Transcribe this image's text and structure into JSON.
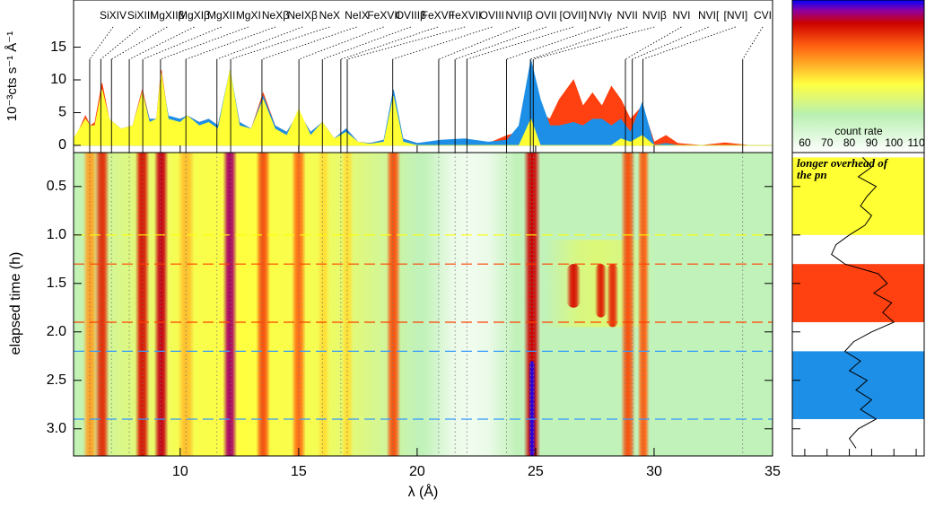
{
  "chart_data": [
    {
      "type": "area",
      "ylabel": "10⁻³cts s⁻¹ Å⁻¹",
      "xlim": [
        5.5,
        35
      ],
      "ylim": [
        -1.1,
        22.2
      ],
      "xticks": [
        10,
        15,
        20,
        25,
        30,
        35
      ],
      "yticks": [
        0,
        5,
        10,
        15
      ],
      "x": [
        5.5,
        6.0,
        6.2,
        6.4,
        6.7,
        7.0,
        7.5,
        8.0,
        8.4,
        8.7,
        9.0,
        9.2,
        9.5,
        10.0,
        10.3,
        10.8,
        11.2,
        11.6,
        12.1,
        12.5,
        13.0,
        13.5,
        14.0,
        14.5,
        15.0,
        15.5,
        16.0,
        16.5,
        17.0,
        17.5,
        18.0,
        18.6,
        19.0,
        19.4,
        20.0,
        21.0,
        22.0,
        23.0,
        23.8,
        24.3,
        24.8,
        25.2,
        25.6,
        26.0,
        26.6,
        27.0,
        27.4,
        27.8,
        28.2,
        28.6,
        29.0,
        29.5,
        30.0,
        30.5,
        31.0,
        32.0,
        33.0,
        34.0,
        35.0
      ],
      "series": [
        {
          "color": "#ff4010",
          "values": [
            0.5,
            4.5,
            3,
            3.5,
            9.5,
            4,
            2.5,
            3,
            8.5,
            4,
            4,
            11.5,
            4,
            4,
            4.5,
            3.5,
            4,
            3,
            11,
            3.5,
            2.5,
            8,
            3,
            2,
            5,
            2,
            3.5,
            1,
            2.5,
            0.5,
            0.3,
            0.8,
            7,
            1,
            0.3,
            0.5,
            0.5,
            0.3,
            1.5,
            2,
            12,
            5,
            4,
            7,
            10,
            6,
            8,
            6,
            9,
            7,
            4,
            6,
            0.5,
            1.5,
            0.3,
            0,
            0.4,
            0,
            0
          ]
        },
        {
          "color": "#1e8fe6",
          "values": [
            0.5,
            4,
            3,
            3,
            8,
            4,
            2.5,
            3,
            8,
            4,
            4,
            10.5,
            4.5,
            4,
            4.5,
            3.5,
            4,
            3,
            11.5,
            3.5,
            2.5,
            7.5,
            3,
            2,
            5,
            2,
            3.5,
            1,
            2.5,
            0.5,
            0.3,
            0.8,
            8.5,
            1,
            0.3,
            0.8,
            1,
            0.5,
            0.8,
            3,
            13,
            7,
            3,
            3,
            3.5,
            3,
            4,
            4,
            3,
            4,
            2,
            6.5,
            0,
            0.3,
            0,
            0,
            0,
            0,
            0
          ]
        },
        {
          "color": "#ffff33",
          "values": [
            1,
            4,
            3,
            3,
            8.5,
            4,
            2.5,
            3,
            8,
            3.5,
            4,
            11,
            4,
            3.5,
            4.5,
            3,
            3.5,
            2.5,
            11.5,
            3,
            2.5,
            7,
            2.5,
            1.5,
            5.5,
            1.5,
            3.5,
            1,
            2,
            0.5,
            0.2,
            0.5,
            7.5,
            0.5,
            0,
            0,
            0,
            0,
            0,
            0,
            4,
            0,
            0,
            0,
            0,
            0,
            0,
            0,
            0,
            1,
            0.5,
            1.5,
            0,
            0,
            0,
            0,
            0,
            0,
            0
          ]
        }
      ],
      "line_labels": [
        {
          "label": "SiXIV",
          "wavelength": 6.18
        },
        {
          "label": "SiXIII",
          "wavelength": 6.65
        },
        {
          "label": "MgXIIβ",
          "wavelength": 7.1
        },
        {
          "label": "MgXIβ",
          "wavelength": 7.85
        },
        {
          "label": "MgXII",
          "wavelength": 8.42
        },
        {
          "label": "MgXI",
          "wavelength": 9.17
        },
        {
          "label": "NeXβ",
          "wavelength": 10.24
        },
        {
          "label": "NeIXβ",
          "wavelength": 11.55
        },
        {
          "label": "NeX",
          "wavelength": 12.13
        },
        {
          "label": "NeIX",
          "wavelength": 13.45
        },
        {
          "label": "FeXVII",
          "wavelength": 15.01
        },
        {
          "label": "OVIIIβ",
          "wavelength": 16.0
        },
        {
          "label": "FeXVII",
          "wavelength": 16.78
        },
        {
          "label": "FeXVII",
          "wavelength": 17.05
        },
        {
          "label": "OVIII",
          "wavelength": 18.97
        },
        {
          "label": "NVIIβ",
          "wavelength": 20.91
        },
        {
          "label": "OVII",
          "wavelength": 21.6
        },
        {
          "label": "[OVII]",
          "wavelength": 22.1
        },
        {
          "label": "NVIγ",
          "wavelength": 23.77
        },
        {
          "label": "NVII",
          "wavelength": 24.78
        },
        {
          "label": "NVIβ",
          "wavelength": 24.9
        },
        {
          "label": "NVI",
          "wavelength": 28.79
        },
        {
          "label": "NVI[",
          "wavelength": 29.08
        },
        {
          "label": "[NVI]",
          "wavelength": 29.53
        },
        {
          "label": "CVI",
          "wavelength": 33.74
        }
      ]
    },
    {
      "type": "heatmap",
      "xlabel": "λ (Å)",
      "ylabel": "elapsed time (h)",
      "xlim": [
        5.5,
        35
      ],
      "ylim": [
        0.15,
        3.28
      ],
      "xticks": [
        10,
        15,
        20,
        25,
        30,
        35
      ],
      "yticks": [
        0.5,
        {
          "value": 1,
          "label": "1.0"
        },
        1.5,
        {
          "value": 2,
          "label": "2.0"
        },
        2.5,
        {
          "value": 3,
          "label": "3.0"
        }
      ],
      "background": 0.22,
      "stripes": [
        {
          "x": [
            5.5,
            20
          ],
          "value": 0.45
        },
        {
          "x": [
            20.3,
            24.2
          ],
          "value": 0.05
        },
        {
          "x": [
            25.4,
            30
          ],
          "value": 0.35,
          "t": [
            1.05,
            1.95
          ]
        },
        {
          "x": [
            5.9,
            6.5
          ],
          "value": 0.6
        },
        {
          "x": [
            6.4,
            7.0
          ],
          "value": 0.78
        },
        {
          "x": [
            8.1,
            8.7
          ],
          "value": 0.82
        },
        {
          "x": [
            8.9,
            9.5
          ],
          "value": 0.86
        },
        {
          "x": [
            9.9,
            10.6
          ],
          "value": 0.55
        },
        {
          "x": [
            11.8,
            12.4
          ],
          "value": 0.9
        },
        {
          "x": [
            13.2,
            13.8
          ],
          "value": 0.72
        },
        {
          "x": [
            14.7,
            15.3
          ],
          "value": 0.68
        },
        {
          "x": [
            15.8,
            16.3
          ],
          "value": 0.5
        },
        {
          "x": [
            16.8,
            17.3
          ],
          "value": 0.5
        },
        {
          "x": [
            18.7,
            19.3
          ],
          "value": 0.72
        },
        {
          "x": [
            24.5,
            25.2
          ],
          "value": 0.85
        },
        {
          "x": [
            24.7,
            25.0
          ],
          "value": 0.98,
          "t": [
            2.3,
            3.28
          ]
        },
        {
          "x": [
            26.3,
            26.9
          ],
          "value": 0.82,
          "t": [
            1.3,
            1.75
          ]
        },
        {
          "x": [
            27.5,
            28.0
          ],
          "value": 0.8,
          "t": [
            1.3,
            1.85
          ]
        },
        {
          "x": [
            28.0,
            28.5
          ],
          "value": 0.78,
          "t": [
            1.3,
            1.95
          ]
        },
        {
          "x": [
            28.6,
            29.2
          ],
          "value": 0.72
        },
        {
          "x": [
            29.3,
            29.8
          ],
          "value": 0.7
        }
      ],
      "cuts": [
        {
          "value": 1.0,
          "color": "#ffff00"
        },
        {
          "value": 1.3,
          "color": "#ff4000"
        },
        {
          "value": 1.9,
          "color": "#ff4000"
        },
        {
          "value": 2.2,
          "color": "#3399ff"
        },
        {
          "value": 2.9,
          "color": "#3399ff"
        }
      ],
      "colormap": [
        {
          "stop": 0,
          "color": "#ffffff"
        },
        {
          "stop": 0.25,
          "color": "#b8f0b0"
        },
        {
          "stop": 0.45,
          "color": "#ffff40"
        },
        {
          "stop": 0.7,
          "color": "#ff6010"
        },
        {
          "stop": 0.85,
          "color": "#cc0000"
        },
        {
          "stop": 0.93,
          "color": "#9000a0"
        },
        {
          "stop": 1,
          "color": "#0000ff"
        }
      ]
    },
    {
      "type": "lightcurve",
      "xlabel": "count rate",
      "xlim": [
        54.4,
        113.6
      ],
      "xticks": [
        60,
        70,
        80,
        90,
        100,
        110
      ],
      "ylim": [
        0.15,
        3.28
      ],
      "annotation": [
        "longer overhead of",
        "the pn"
      ],
      "bands": [
        {
          "range": [
            0.2,
            1.0
          ],
          "color": "#ffff33"
        },
        {
          "range": [
            1.3,
            1.9
          ],
          "color": "#ff4010"
        },
        {
          "range": [
            2.2,
            2.9
          ],
          "color": "#1e8fe6"
        }
      ],
      "time": [
        0.2,
        0.3,
        0.4,
        0.5,
        0.6,
        0.7,
        0.8,
        0.9,
        1.0,
        1.1,
        1.2,
        1.3,
        1.4,
        1.5,
        1.6,
        1.7,
        1.8,
        1.9,
        2.0,
        2.1,
        2.2,
        2.3,
        2.4,
        2.5,
        2.6,
        2.7,
        2.8,
        2.9,
        3.0,
        3.1,
        3.2
      ],
      "values": [
        86,
        90,
        84,
        92,
        88,
        85,
        90,
        87,
        80,
        74,
        72,
        78,
        93,
        97,
        91,
        99,
        95,
        100,
        90,
        82,
        78,
        85,
        80,
        88,
        83,
        90,
        85,
        92,
        84,
        80,
        83
      ]
    }
  ]
}
